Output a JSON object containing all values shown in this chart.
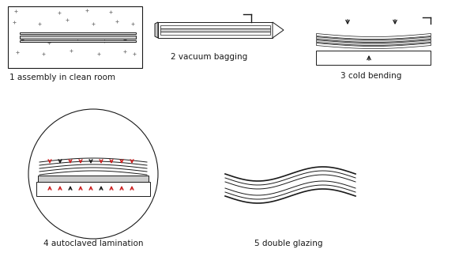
{
  "labels": {
    "1": "1 assembly in clean room",
    "2": "2 vacuum bagging",
    "3": "3 cold bending",
    "4": "4 autoclaved lamination",
    "5": "5 double glazing"
  },
  "label_fontsize": 7.5,
  "bg_color": "#ffffff",
  "line_color": "#1a1a1a",
  "red_color": "#cc2222",
  "gray_color": "#999999",
  "light_gray": "#cccccc",
  "dot_color": "#888888"
}
